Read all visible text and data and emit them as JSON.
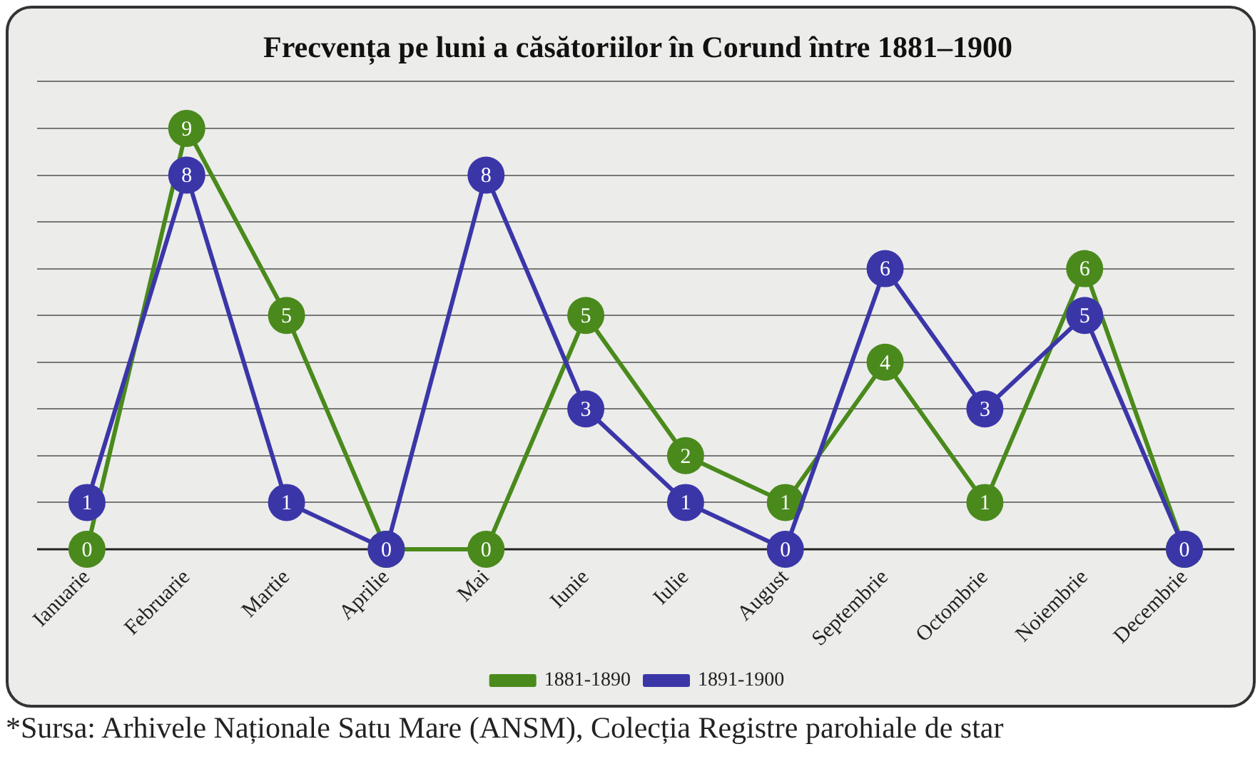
{
  "chart_data": {
    "type": "line",
    "title": "Frecvența pe luni a căsătoriilor în Corund între 1881–1900",
    "categories": [
      "Ianuarie",
      "Februarie",
      "Martie",
      "Aprilie",
      "Mai",
      "Iunie",
      "Iulie",
      "August",
      "Septembrie",
      "Octombrie",
      "Noiembrie",
      "Decembrie"
    ],
    "series": [
      {
        "name": "1881-1890",
        "color": "#4a8a1c",
        "values": [
          0,
          9,
          5,
          0,
          0,
          5,
          2,
          1,
          4,
          1,
          6,
          0
        ],
        "value_labels": [
          "0",
          "9",
          "5",
          null,
          "0",
          "5",
          "2",
          "1",
          "4",
          "1",
          "6",
          null
        ]
      },
      {
        "name": "1891-1900",
        "color": "#3b36a8",
        "values": [
          1,
          8,
          1,
          0,
          8,
          3,
          1,
          0,
          6,
          3,
          5,
          0
        ],
        "value_labels": [
          "1",
          "8",
          "1",
          "0",
          "8",
          "3",
          "1",
          "0",
          "6",
          "3",
          "5",
          "0"
        ]
      }
    ],
    "ylim": [
      0,
      10
    ],
    "yticks": [
      {
        "value": 0,
        "label": null
      },
      {
        "value": 1,
        "label": null
      },
      {
        "value": 2,
        "label": null
      },
      {
        "value": 3,
        "label": null
      },
      {
        "value": 4,
        "label": null
      },
      {
        "value": 5,
        "label": null
      },
      {
        "value": 6,
        "label": null
      },
      {
        "value": 7,
        "label": null
      },
      {
        "value": 8,
        "label": null
      },
      {
        "value": 9,
        "label": null
      },
      {
        "value": 10,
        "label": null
      }
    ],
    "tick_labels": "x",
    "grid": "y",
    "legend": "bottom",
    "marker": "circle",
    "line_style": "solid",
    "annotations": [
      "*Sursa: Arhivele Naționale Satu Mare (ANSM), Colecția Registre parohiale de star"
    ]
  }
}
